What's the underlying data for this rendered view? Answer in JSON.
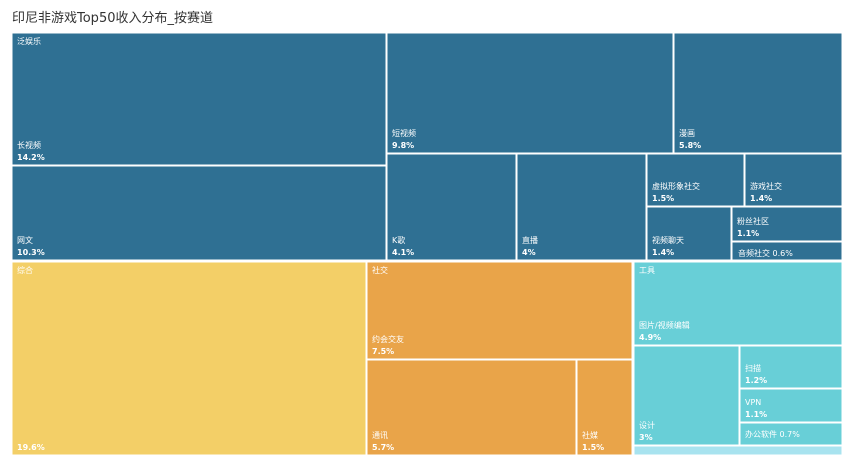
{
  "title": "印尼非游戏Top50收入分布_按赛道",
  "colors": {
    "泛娱乐": "#2f7093",
    "综合": "#f3cf67",
    "社交": "#e9a449",
    "工具": "#68cfd7",
    "工具_bottom": "#a8e3ef",
    "border": "#ffffff"
  },
  "chart_data": {
    "type": "treemap",
    "title": "印尼非游戏Top50收入分布_按赛道",
    "groups": [
      {
        "name": "泛娱乐",
        "children": [
          {
            "name": "长视频",
            "value": 14.2,
            "label": "14.2%"
          },
          {
            "name": "网文",
            "value": 10.3,
            "label": "10.3%"
          },
          {
            "name": "短视频",
            "value": 9.8,
            "label": "9.8%"
          },
          {
            "name": "漫画",
            "value": 5.8,
            "label": "5.8%"
          },
          {
            "name": "K歌",
            "value": 4.1,
            "label": "4.1%"
          },
          {
            "name": "直播",
            "value": 4.0,
            "label": "4%"
          },
          {
            "name": "虚拟形象社交",
            "value": 1.5,
            "label": "1.5%"
          },
          {
            "name": "游戏社交",
            "value": 1.4,
            "label": "1.4%"
          },
          {
            "name": "视频聊天",
            "value": 1.4,
            "label": "1.4%"
          },
          {
            "name": "粉丝社区",
            "value": 1.1,
            "label": "1.1%"
          },
          {
            "name": "音频社交",
            "value": 0.6,
            "label": "0.6%"
          }
        ]
      },
      {
        "name": "综合",
        "children": [
          {
            "name": "",
            "value": 19.6,
            "label": "19.6%"
          }
        ]
      },
      {
        "name": "社交",
        "children": [
          {
            "name": "约会交友",
            "value": 7.5,
            "label": "7.5%"
          },
          {
            "name": "通讯",
            "value": 5.7,
            "label": "5.7%"
          },
          {
            "name": "社媒",
            "value": 1.5,
            "label": "1.5%"
          }
        ]
      },
      {
        "name": "工具",
        "children": [
          {
            "name": "图片/视频编辑",
            "value": 4.9,
            "label": "4.9%"
          },
          {
            "name": "设计",
            "value": 3.0,
            "label": "3%"
          },
          {
            "name": "扫描",
            "value": 1.2,
            "label": "1.2%"
          },
          {
            "name": "VPN",
            "value": 1.1,
            "label": "1.1%"
          },
          {
            "name": "办公软件",
            "value": 0.7,
            "label": "0.7%"
          },
          {
            "name": "",
            "value": 0.3,
            "label": ""
          }
        ]
      }
    ]
  }
}
